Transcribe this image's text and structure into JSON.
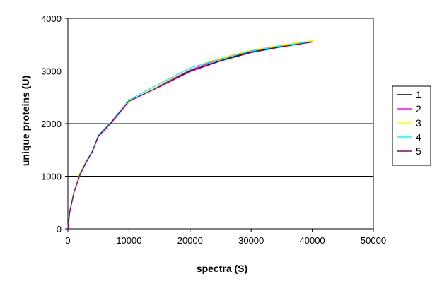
{
  "chart_data": {
    "type": "line",
    "title": "",
    "xlabel": "spectra (S)",
    "ylabel": "unique proteins (U)",
    "xlim": [
      0,
      50000
    ],
    "ylim": [
      0,
      4000
    ],
    "x_ticks": [
      0,
      10000,
      20000,
      30000,
      40000,
      50000
    ],
    "y_ticks": [
      0,
      1000,
      2000,
      3000,
      4000
    ],
    "grid": "horizontal",
    "legend_position": "right",
    "series": [
      {
        "name": "1",
        "color": "#000000",
        "points": [
          [
            0,
            0
          ],
          [
            300,
            330
          ],
          [
            1000,
            700
          ],
          [
            2000,
            1060
          ],
          [
            3000,
            1280
          ],
          [
            4000,
            1480
          ],
          [
            5000,
            1760
          ],
          [
            7000,
            2010
          ],
          [
            10000,
            2420
          ],
          [
            15000,
            2710
          ],
          [
            20000,
            3000
          ],
          [
            25000,
            3200
          ],
          [
            30000,
            3370
          ],
          [
            35000,
            3470
          ],
          [
            40000,
            3560
          ]
        ]
      },
      {
        "name": "2",
        "color": "#ff00ff",
        "points": [
          [
            0,
            0
          ],
          [
            300,
            320
          ],
          [
            1000,
            690
          ],
          [
            2000,
            1030
          ],
          [
            3000,
            1260
          ],
          [
            4000,
            1470
          ],
          [
            5000,
            1760
          ],
          [
            7000,
            2000
          ],
          [
            10000,
            2410
          ],
          [
            15000,
            2720
          ],
          [
            20000,
            3020
          ],
          [
            25000,
            3230
          ],
          [
            30000,
            3390
          ],
          [
            35000,
            3490
          ],
          [
            40000,
            3570
          ]
        ]
      },
      {
        "name": "3",
        "color": "#ffff00",
        "points": [
          [
            0,
            0
          ],
          [
            300,
            335
          ],
          [
            1000,
            710
          ],
          [
            2000,
            1080
          ],
          [
            3000,
            1290
          ],
          [
            4000,
            1490
          ],
          [
            5000,
            1780
          ],
          [
            7000,
            2020
          ],
          [
            10000,
            2410
          ],
          [
            15000,
            2730
          ],
          [
            20000,
            3060
          ],
          [
            25000,
            3250
          ],
          [
            30000,
            3400
          ],
          [
            35000,
            3500
          ],
          [
            40000,
            3580
          ]
        ]
      },
      {
        "name": "4",
        "color": "#00ffff",
        "points": [
          [
            0,
            0
          ],
          [
            300,
            330
          ],
          [
            1000,
            700
          ],
          [
            2000,
            1050
          ],
          [
            3000,
            1280
          ],
          [
            4000,
            1480
          ],
          [
            5000,
            1780
          ],
          [
            7000,
            2030
          ],
          [
            10000,
            2450
          ],
          [
            15000,
            2760
          ],
          [
            20000,
            3060
          ],
          [
            25000,
            3230
          ],
          [
            30000,
            3380
          ],
          [
            35000,
            3480
          ],
          [
            40000,
            3560
          ]
        ]
      },
      {
        "name": "5",
        "color": "#800080",
        "points": [
          [
            0,
            0
          ],
          [
            300,
            325
          ],
          [
            1000,
            695
          ],
          [
            2000,
            1040
          ],
          [
            3000,
            1270
          ],
          [
            4000,
            1470
          ],
          [
            5000,
            1770
          ],
          [
            7000,
            2010
          ],
          [
            10000,
            2430
          ],
          [
            15000,
            2700
          ],
          [
            20000,
            2990
          ],
          [
            25000,
            3190
          ],
          [
            30000,
            3350
          ],
          [
            35000,
            3460
          ],
          [
            40000,
            3550
          ]
        ]
      }
    ]
  }
}
